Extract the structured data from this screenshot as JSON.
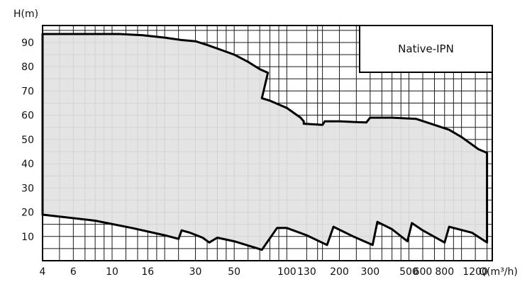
{
  "chart_data": {
    "type": "area",
    "title": "",
    "xlabel": "Q(m³/h)",
    "ylabel": "H(m)",
    "x_scale": "log",
    "xlim": [
      4,
      1500
    ],
    "ylim": [
      0,
      97
    ],
    "grid": true,
    "fill_color": "#e2e2e2",
    "outline_color": "#000000",
    "grid_color": "#1a1a1a",
    "x_ticks": [
      "4",
      "6",
      "10",
      "16",
      "30",
      "50",
      "100",
      "130",
      "200",
      "300",
      "500",
      "600",
      "800",
      "1200"
    ],
    "x_tick_values": [
      4,
      6,
      10,
      16,
      30,
      50,
      100,
      130,
      200,
      300,
      500,
      600,
      800,
      1200
    ],
    "y_ticks": [
      "10",
      "20",
      "30",
      "40",
      "50",
      "60",
      "70",
      "80",
      "90"
    ],
    "y_tick_values": [
      10,
      20,
      30,
      40,
      50,
      60,
      70,
      80,
      90
    ],
    "legend": {
      "label": "Native-IPN",
      "position": "top-right"
    },
    "series": [
      {
        "label": "Native-IPN",
        "upper": [
          [
            4,
            93.5
          ],
          [
            8,
            93.5
          ],
          [
            11,
            93.5
          ],
          [
            15,
            93
          ],
          [
            20,
            92
          ],
          [
            25,
            91
          ],
          [
            30,
            90.5
          ],
          [
            35,
            89
          ],
          [
            40,
            87.5
          ],
          [
            50,
            85
          ],
          [
            60,
            82
          ],
          [
            70,
            79
          ],
          [
            78,
            77.5
          ],
          [
            72,
            67
          ],
          [
            80,
            66
          ],
          [
            100,
            63
          ],
          [
            120,
            59
          ],
          [
            125,
            57.5
          ],
          [
            125,
            56.5
          ],
          [
            160,
            56
          ],
          [
            165,
            57.5
          ],
          [
            200,
            57.5
          ],
          [
            285,
            57
          ],
          [
            300,
            59
          ],
          [
            400,
            59
          ],
          [
            550,
            58.5
          ],
          [
            700,
            56
          ],
          [
            850,
            54
          ],
          [
            1000,
            51
          ],
          [
            1250,
            46
          ],
          [
            1400,
            44.5
          ]
        ],
        "lower": [
          [
            1400,
            7.5
          ],
          [
            1150,
            11.5
          ],
          [
            850,
            14
          ],
          [
            800,
            7.5
          ],
          [
            600,
            12.5
          ],
          [
            520,
            15.5
          ],
          [
            490,
            8
          ],
          [
            400,
            13
          ],
          [
            330,
            16
          ],
          [
            310,
            6.5
          ],
          [
            240,
            10
          ],
          [
            185,
            14
          ],
          [
            170,
            6.5
          ],
          [
            130,
            10.5
          ],
          [
            100,
            13.5
          ],
          [
            88,
            13.5
          ],
          [
            72,
            4.5
          ],
          [
            50,
            8
          ],
          [
            40,
            9.5
          ],
          [
            36,
            7.5
          ],
          [
            33,
            9.5
          ],
          [
            28,
            11.5
          ],
          [
            25,
            12.5
          ],
          [
            24,
            9
          ],
          [
            20,
            10.5
          ],
          [
            13,
            13.5
          ],
          [
            8,
            16.5
          ],
          [
            4,
            19
          ]
        ]
      }
    ]
  }
}
